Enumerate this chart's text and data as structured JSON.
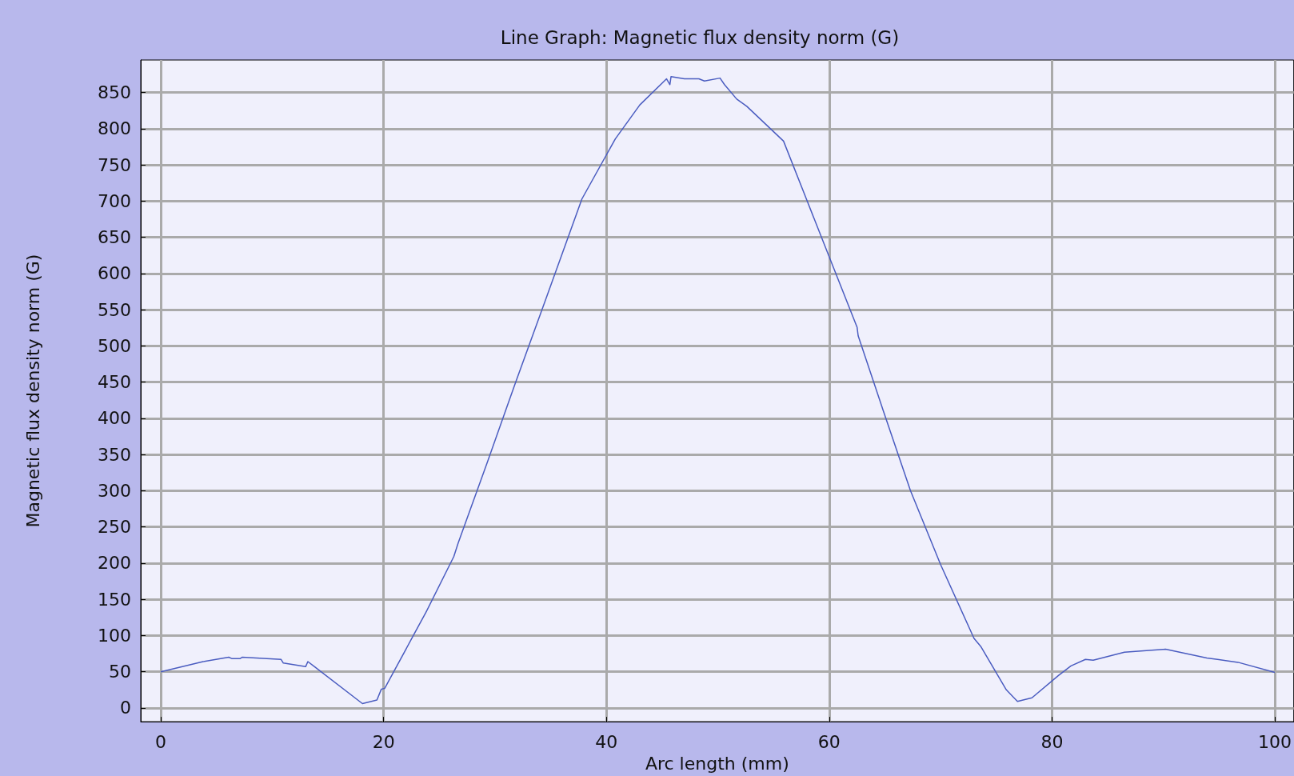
{
  "chart_data": {
    "type": "line",
    "title": "Line Graph: Magnetic flux density norm (G)",
    "xlabel": "Arc length (mm)",
    "ylabel": "Magnetic flux density norm (G)",
    "x": [
      0,
      3.8,
      6.1,
      6.4,
      7.1,
      7.3,
      10.8,
      11.0,
      13.0,
      13.2,
      13.8,
      18.1,
      19.4,
      19.8,
      20.1,
      22.6,
      23.8,
      26.3,
      26.7,
      29.3,
      31.9,
      34.5,
      37.8,
      40.8,
      43.0,
      45.4,
      45.7,
      45.8,
      47.0,
      48.3,
      48.8,
      50.2,
      50.6,
      51.7,
      52.6,
      55.9,
      59.9,
      62.5,
      62.6,
      64.8,
      67.3,
      70.0,
      73.0,
      73.6,
      75.9,
      76.9,
      78.2,
      80.6,
      81.7,
      83.0,
      83.7,
      86.5,
      90.2,
      93.9,
      96.7,
      100
    ],
    "series": [
      {
        "color": "#4a5cc0",
        "values": [
          50,
          64,
          70,
          68,
          68,
          70,
          67,
          62,
          57,
          64,
          57,
          6,
          11,
          26,
          27,
          98,
          132,
          209,
          228,
          339,
          452,
          562,
          703,
          786,
          833,
          869,
          861,
          872,
          869,
          869,
          866,
          870,
          861,
          841,
          831,
          783,
          627,
          526,
          514,
          413,
          300,
          198,
          96,
          85,
          25,
          9,
          14,
          45,
          58,
          67,
          66,
          77,
          81,
          69,
          63,
          49
        ]
      }
    ],
    "xlim": [
      -1.8,
      101.7
    ],
    "ylim": [
      -19,
      895
    ],
    "xticks": [
      0,
      20,
      40,
      60,
      80,
      100
    ],
    "yticks": [
      0,
      50,
      100,
      150,
      200,
      250,
      300,
      350,
      400,
      450,
      500,
      550,
      600,
      650,
      700,
      750,
      800,
      850
    ],
    "grid": true,
    "marker": "none",
    "line_style": "solid"
  }
}
